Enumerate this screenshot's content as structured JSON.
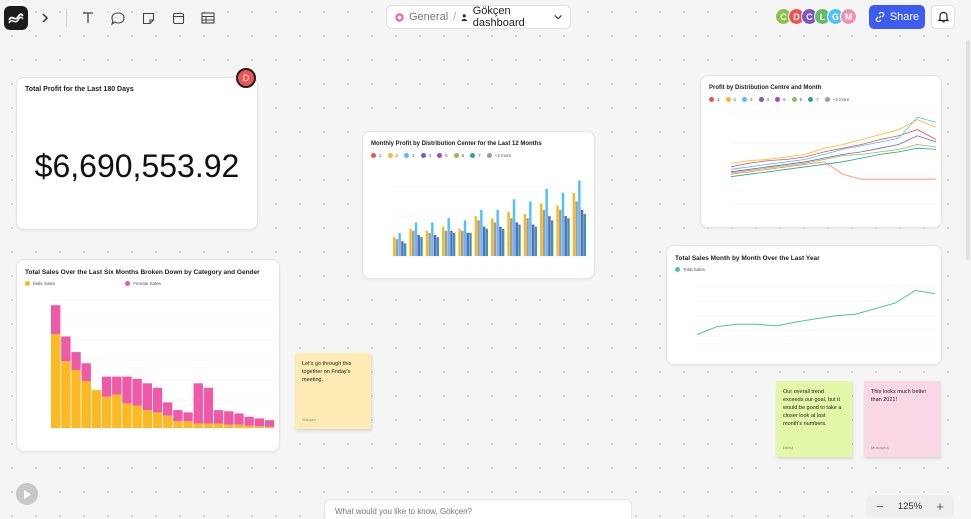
{
  "breadcrumb": {
    "workspace": "General",
    "separator": "/",
    "dashboard": "Gökçen dashboard"
  },
  "avatars": [
    {
      "initial": "C",
      "color": "#8bc34a"
    },
    {
      "initial": "D",
      "color": "#ef5350"
    },
    {
      "initial": "C",
      "color": "#7e57c2"
    },
    {
      "initial": "L",
      "color": "#66bb6a"
    },
    {
      "initial": "G",
      "color": "#4fc3f7"
    },
    {
      "initial": "M",
      "color": "#f48fb1"
    }
  ],
  "share_label": "Share",
  "comment_avatar": "D",
  "kpi": {
    "title": "Total Profit for the Last 180 Days",
    "value": "$6,690,553.92"
  },
  "monthly_chart": {
    "title": "Monthly Profit by Distribution Center for the Last 12 Months",
    "legend": [
      "1",
      "2",
      "3",
      "4",
      "5",
      "6",
      "7",
      "+3 more"
    ]
  },
  "dc_month_chart": {
    "title": "Profit by Distribution Centre and Month",
    "legend": [
      "1",
      "2",
      "3",
      "4",
      "5",
      "6",
      "7",
      "+3 more"
    ]
  },
  "sales_month_chart": {
    "title": "Total Sales Month by Month Over the Last Year",
    "legend": [
      "Total Sales"
    ]
  },
  "gender_chart": {
    "title": "Total Sales Over the Last Six Months Broken Down by Category and Gender",
    "legend": [
      "Male Sales",
      "Female Sales"
    ]
  },
  "notes": [
    {
      "text": "Let's go through this together on Friday's meeting.",
      "author": "Gökçen",
      "color": "#fdebb3"
    },
    {
      "text": "Our overall trend exceeds our goal, but it would be good to take a closer look at last month's numbers.",
      "author": "Deniz",
      "color": "#e3f7a8"
    },
    {
      "text": "This looks much better than 2021!",
      "author": "Mustapha",
      "color": "#f9d7e5"
    }
  ],
  "ask": {
    "placeholder": "What would you like to know, Gökçen?"
  },
  "zoom": {
    "level": "125%",
    "minus": "−",
    "plus": "+"
  },
  "icons": [
    "logo-icon",
    "chevron-right-icon",
    "text-icon",
    "comment-icon",
    "sticky-note-icon",
    "frame-icon",
    "table-icon",
    "globe-icon",
    "user-icon",
    "chevron-down-icon",
    "link-icon",
    "bell-icon",
    "play-icon"
  ],
  "colors": {
    "yellow": "#fbb924",
    "pink": "#ee5aa8",
    "blue": "#3d5cf0",
    "teal": "#4fc3a1"
  },
  "chart_data": [
    {
      "type": "bar",
      "title": "Monthly Profit by Distribution Center for the Last 12 Months",
      "categories": [
        "1",
        "2",
        "3",
        "4",
        "5",
        "6",
        "7",
        "8",
        "9",
        "10",
        "11",
        "12"
      ],
      "series": [
        {
          "name": "1",
          "values": [
            9,
            13,
            12,
            14,
            13,
            19,
            18,
            21,
            20,
            25,
            24,
            30
          ]
        },
        {
          "name": "2",
          "values": [
            8,
            12,
            11,
            12,
            12,
            17,
            16,
            18,
            18,
            22,
            22,
            26
          ]
        },
        {
          "name": "3",
          "values": [
            11,
            16,
            16,
            18,
            17,
            22,
            22,
            27,
            26,
            32,
            30,
            36
          ]
        },
        {
          "name": "4",
          "values": [
            7,
            10,
            10,
            12,
            11,
            14,
            14,
            16,
            15,
            19,
            19,
            22
          ]
        },
        {
          "name": "5",
          "values": [
            6,
            9,
            9,
            11,
            11,
            13,
            13,
            15,
            14,
            17,
            18,
            20
          ]
        }
      ]
    },
    {
      "type": "line",
      "title": "Profit by Distribution Centre and Month",
      "x": [
        "1",
        "2",
        "3",
        "4",
        "5",
        "6",
        "7",
        "8",
        "9",
        "10",
        "11",
        "12"
      ],
      "series": [
        {
          "name": "1",
          "values": [
            30,
            33,
            35,
            36,
            38,
            42,
            45,
            48,
            52,
            55,
            60,
            52
          ]
        },
        {
          "name": "2",
          "values": [
            28,
            30,
            32,
            34,
            36,
            40,
            44,
            47,
            50,
            53,
            70,
            66
          ]
        },
        {
          "name": "3",
          "values": [
            33,
            35,
            36,
            38,
            40,
            45,
            48,
            52,
            56,
            60,
            68,
            62
          ]
        },
        {
          "name": "4",
          "values": [
            26,
            28,
            30,
            32,
            34,
            37,
            40,
            42,
            45,
            48,
            55,
            50
          ]
        },
        {
          "name": "5",
          "values": [
            25,
            27,
            29,
            31,
            33,
            36,
            39,
            40,
            42,
            44,
            48,
            46
          ]
        },
        {
          "name": "6",
          "values": [
            24,
            26,
            28,
            30,
            32,
            34,
            24,
            20,
            20,
            20,
            20,
            20
          ]
        },
        {
          "name": "7",
          "values": [
            22,
            24,
            26,
            28,
            30,
            32,
            34,
            37,
            40,
            42,
            45,
            44
          ]
        }
      ]
    },
    {
      "type": "line",
      "title": "Total Sales Month by Month Over the Last Year",
      "x": [
        "1",
        "2",
        "3",
        "4",
        "5",
        "6",
        "7",
        "8",
        "9",
        "10",
        "11",
        "12",
        "13"
      ],
      "series": [
        {
          "name": "Total Sales",
          "values": [
            12,
            22,
            25,
            25,
            23,
            28,
            32,
            36,
            38,
            45,
            52,
            68,
            64
          ]
        }
      ]
    },
    {
      "type": "bar",
      "title": "Total Sales Over the Last Six Months Broken Down by Category and Gender",
      "categories": [
        "1",
        "2",
        "3",
        "4",
        "5",
        "6",
        "7",
        "8",
        "9",
        "10",
        "11",
        "12",
        "13",
        "14",
        "15",
        "16",
        "17",
        "18",
        "19",
        "20",
        "21",
        "22"
      ],
      "series": [
        {
          "name": "Male Sales",
          "values": [
            420,
            300,
            260,
            210,
            170,
            140,
            150,
            110,
            100,
            80,
            70,
            55,
            30,
            30,
            20,
            20,
            20,
            15,
            15,
            10,
            8,
            5
          ]
        },
        {
          "name": "Female Sales",
          "values": [
            130,
            110,
            80,
            80,
            0,
            90,
            80,
            120,
            120,
            120,
            110,
            60,
            50,
            40,
            180,
            160,
            60,
            60,
            50,
            40,
            35,
            30
          ]
        }
      ]
    }
  ]
}
